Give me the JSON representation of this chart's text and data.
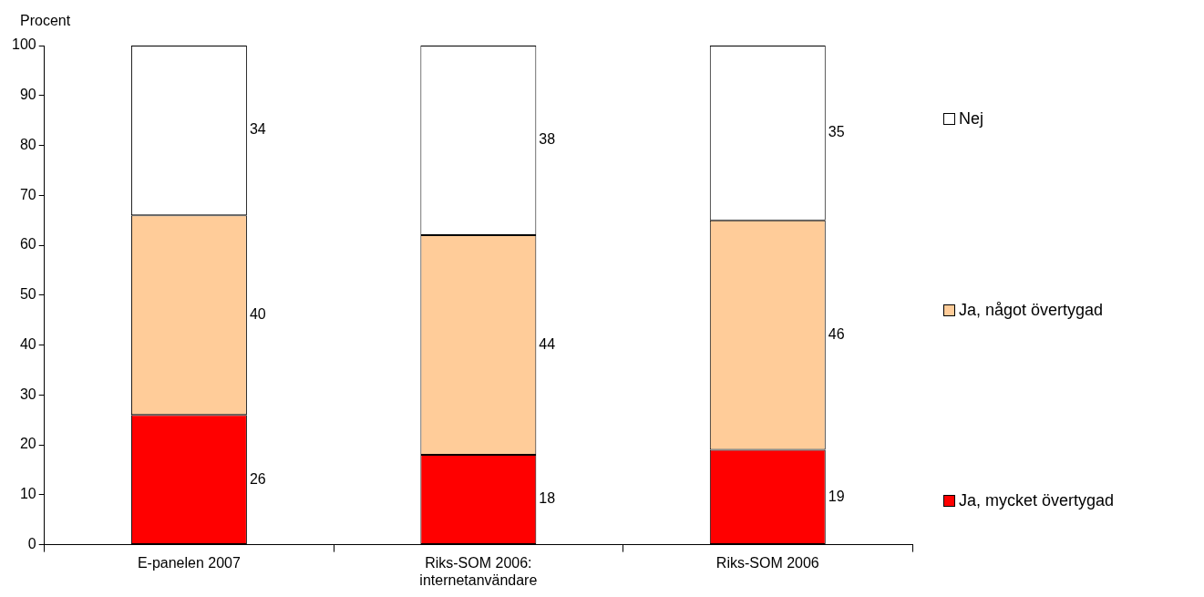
{
  "chart_data": {
    "type": "bar",
    "ylabel": "Procent",
    "categories": [
      "E-panelen 2007",
      "Riks-SOM 2006: internetanvändare",
      "Riks-SOM 2006"
    ],
    "series": [
      {
        "name": "Ja, mycket övertygad",
        "color": "#ff0000",
        "values": [
          26,
          18,
          19
        ]
      },
      {
        "name": "Ja, något övertygad",
        "color": "#ffcc99",
        "values": [
          40,
          44,
          46
        ]
      },
      {
        "name": "Nej",
        "color": "#ffffff",
        "values": [
          34,
          38,
          35
        ]
      }
    ],
    "stacked": true,
    "ylim": [
      0,
      100
    ],
    "yticks": [
      0,
      10,
      20,
      30,
      40,
      50,
      60,
      70,
      80,
      90,
      100
    ],
    "grid": false,
    "legend": "right",
    "data_labels": true
  }
}
